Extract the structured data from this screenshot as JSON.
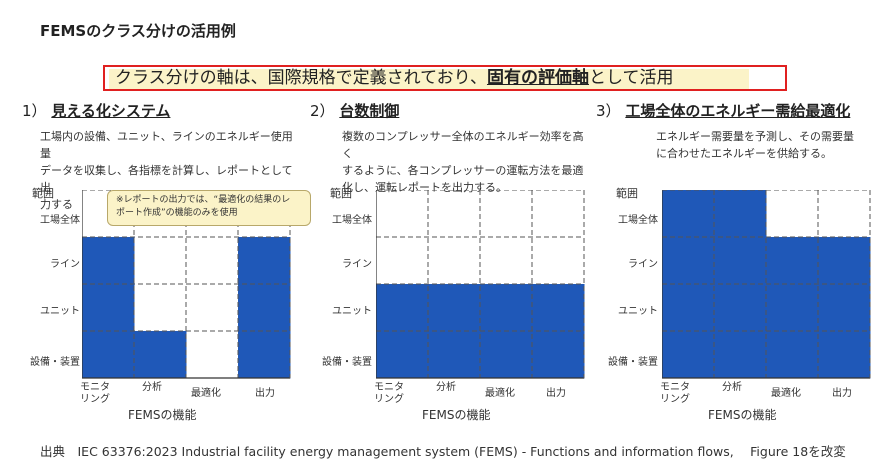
{
  "page_title": "FEMSのクラス分けの活用例",
  "banner": {
    "text_before": "クラス分けの軸は、国際規格で定義されており、",
    "text_emphasis": "固有の評価軸",
    "text_after": "として活用"
  },
  "axes": {
    "range_label": "範囲",
    "rows": [
      "工場全体",
      "ライン",
      "ユニット",
      "設備・装置"
    ],
    "columns": [
      "モニタ\nリング",
      "分析",
      "最適化",
      "出力"
    ],
    "x_title": "FEMSの機能"
  },
  "panels": [
    {
      "number": "1）",
      "name": "見える化システム",
      "description": [
        "工場内の設備、ユニット、ラインのエネルギー使用量",
        "データを収集し、各指標を計算し、レポートとして出",
        "力する"
      ],
      "callout": [
        "※レポートの出力では、“最適化の結果のレ",
        "ポート作成”の機能のみを使用"
      ],
      "filled_cells": [
        [
          1,
          0
        ],
        [
          2,
          0
        ],
        [
          3,
          0
        ],
        [
          3,
          1
        ],
        [
          1,
          3
        ],
        [
          2,
          3
        ],
        [
          3,
          3
        ]
      ]
    },
    {
      "number": "2）",
      "name": "台数制御",
      "description": [
        "複数のコンプレッサー全体のエネルギー効率を高く",
        "するように、各コンプレッサーの運転方法を最適",
        "化し、運転レポートを出力する。"
      ],
      "filled_cells": [
        [
          2,
          0
        ],
        [
          2,
          1
        ],
        [
          2,
          2
        ],
        [
          2,
          3
        ],
        [
          3,
          0
        ],
        [
          3,
          1
        ],
        [
          3,
          2
        ],
        [
          3,
          3
        ]
      ]
    },
    {
      "number": "3）",
      "name": "工場全体のエネルギー需給最適化",
      "description": [
        "エネルギー需要量を予測し、その需要量",
        "に合わせたエネルギーを供給する。"
      ],
      "filled_cells": [
        [
          0,
          0
        ],
        [
          0,
          1
        ],
        [
          1,
          0
        ],
        [
          1,
          1
        ],
        [
          1,
          2
        ],
        [
          1,
          3
        ],
        [
          2,
          0
        ],
        [
          2,
          1
        ],
        [
          2,
          2
        ],
        [
          2,
          3
        ],
        [
          3,
          0
        ],
        [
          3,
          1
        ],
        [
          3,
          2
        ],
        [
          3,
          3
        ]
      ]
    }
  ],
  "fill_color": "#1f58b8",
  "source": "出典　IEC 63376:2023 Industrial facility energy management system (FEMS) - Functions and information flows,　 Figure 18を改変"
}
